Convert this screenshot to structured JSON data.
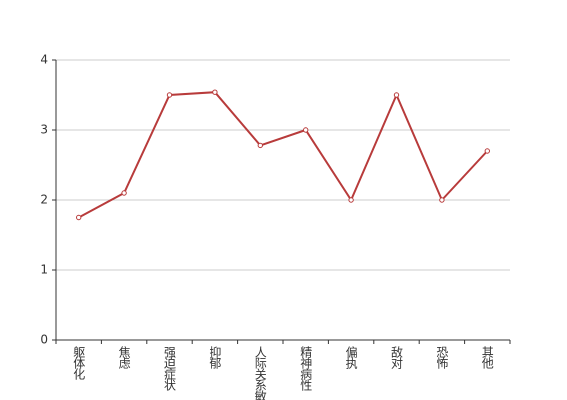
{
  "chart_data": {
    "type": "line",
    "categories": [
      "躯体化",
      "焦虑",
      "强迫症状",
      "抑郁",
      "人际关系敏感",
      "精神病性",
      "偏执",
      "敌对",
      "恐怖",
      "其他"
    ],
    "values": [
      1.75,
      2.1,
      3.5,
      3.54,
      2.78,
      3.0,
      2.0,
      3.5,
      2.0,
      2.7
    ],
    "color": "#b83b3b",
    "ylim": [
      0,
      4
    ],
    "yticks": [
      0,
      1,
      2,
      3,
      4
    ],
    "grid": true
  }
}
